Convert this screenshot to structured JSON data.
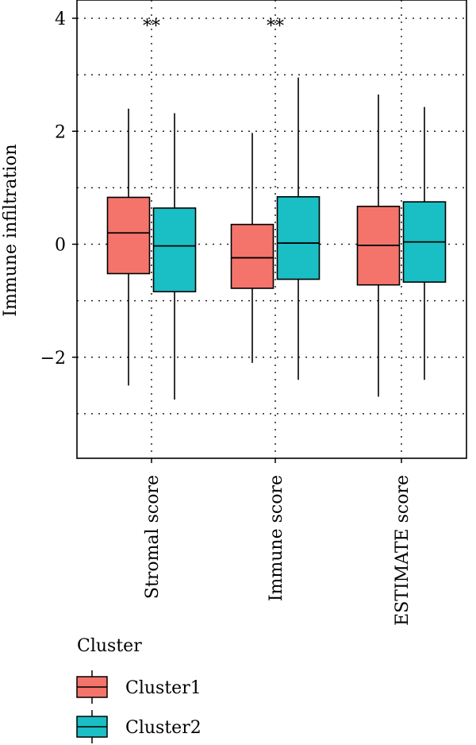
{
  "chart_data": {
    "type": "box",
    "ylabel": "Immune infiltration",
    "xlabel": "",
    "ylim": [
      -3.8,
      4.2
    ],
    "yticks": [
      4,
      2,
      0,
      -2
    ],
    "ytick_labels": [
      "4",
      "2",
      "0",
      "−2"
    ],
    "minor_grid_y": [
      3,
      1,
      -1,
      -3
    ],
    "grid": true,
    "categories": [
      "Stromal score",
      "Immune score",
      "ESTIMATE score"
    ],
    "significance": [
      "**",
      "**",
      ""
    ],
    "series": [
      {
        "name": "Cluster1",
        "color": "#F4746B",
        "boxes": [
          {
            "min": -2.5,
            "q1": -0.52,
            "median": 0.2,
            "q3": 0.83,
            "max": 2.4
          },
          {
            "min": -2.1,
            "q1": -0.78,
            "median": -0.24,
            "q3": 0.35,
            "max": 1.97
          },
          {
            "min": -2.7,
            "q1": -0.72,
            "median": -0.02,
            "q3": 0.67,
            "max": 2.65
          }
        ]
      },
      {
        "name": "Cluster2",
        "color": "#19BFC4",
        "boxes": [
          {
            "min": -2.75,
            "q1": -0.84,
            "median": -0.03,
            "q3": 0.64,
            "max": 2.32
          },
          {
            "min": -2.4,
            "q1": -0.62,
            "median": 0.02,
            "q3": 0.84,
            "max": 2.95
          },
          {
            "min": -2.4,
            "q1": -0.67,
            "median": 0.04,
            "q3": 0.75,
            "max": 2.43
          }
        ]
      }
    ],
    "legend": {
      "title": "Cluster",
      "placement": "bottom"
    }
  }
}
